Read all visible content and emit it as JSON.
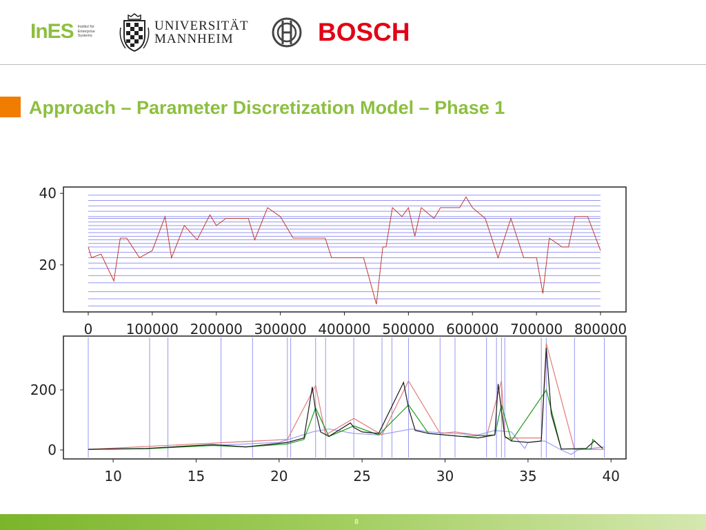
{
  "header": {
    "ines": {
      "word": "InES",
      "subtitle": "Institut für\nEnterprise\nSystems"
    },
    "university": {
      "line1": "UNIVERSITÄT",
      "line2": "MANNHEIM"
    },
    "bosch": {
      "word": "BOSCH"
    }
  },
  "slide": {
    "title": "Approach – Parameter Discretization Model – Phase 1",
    "page_number": "8"
  },
  "colors": {
    "accent_green": "#8cbf3f",
    "accent_orange": "#f07c00",
    "bosch_red": "#e20015",
    "series_red": "#c0392b",
    "bin_blue": "#7b7bf0"
  },
  "chart_data": [
    {
      "type": "line",
      "title": "",
      "xlabel": "",
      "ylabel": "",
      "xlim": [
        0,
        800000
      ],
      "ylim": [
        8,
        41
      ],
      "xticks": [
        "0",
        "100000",
        "200000",
        "300000",
        "400000",
        "500000",
        "600000",
        "700000",
        "800000"
      ],
      "yticks": [
        "20",
        "40"
      ],
      "grid": false,
      "horizontal_bins": [
        8.5,
        10.5,
        12.5,
        15,
        17,
        19,
        20.5,
        22,
        23.5,
        25,
        26,
        27,
        28,
        29,
        30,
        31,
        32,
        33,
        33.5,
        35,
        36.5,
        38,
        39.5
      ],
      "series": [
        {
          "x": [
            0,
            5000,
            20000,
            40000,
            50000,
            60000,
            80000,
            100000,
            120000,
            130000,
            150000,
            170000,
            190000,
            200000,
            215000,
            230000,
            250000,
            260000,
            280000,
            300000,
            320000,
            350000,
            370000,
            380000,
            400000,
            430000,
            450000,
            460000,
            465000,
            475000,
            490000,
            500000,
            510000,
            520000,
            540000,
            550000,
            560000,
            580000,
            590000,
            600000,
            620000,
            640000,
            660000,
            680000,
            700000,
            710000,
            720000,
            740000,
            750000,
            760000,
            780000,
            800000
          ],
          "y": [
            25,
            22,
            23,
            15.5,
            27.5,
            27.5,
            22,
            24,
            33.5,
            22,
            31,
            27,
            34,
            31,
            33,
            33,
            33,
            27,
            36,
            33.5,
            27.5,
            27.5,
            27.5,
            22,
            22,
            22,
            9,
            25,
            25,
            36,
            33.5,
            36,
            28,
            36,
            33,
            36,
            36,
            36,
            39,
            36,
            33,
            22,
            33,
            22,
            22,
            12,
            27.5,
            25,
            25,
            33.5,
            33.5,
            24
          ]
        }
      ]
    },
    {
      "type": "line",
      "title": "",
      "xlabel": "",
      "ylabel": "",
      "xlim": [
        8.5,
        39.7
      ],
      "ylim": [
        -10,
        360
      ],
      "xticks": [
        "10",
        "15",
        "20",
        "25",
        "30",
        "35",
        "40"
      ],
      "yticks": [
        "0",
        "200"
      ],
      "grid": false,
      "vertical_bins": [
        8.5,
        12.2,
        13.3,
        16.5,
        18.4,
        20.5,
        20.7,
        22.2,
        22.8,
        24.5,
        26.2,
        26.8,
        27.8,
        29.7,
        30.6,
        32.5,
        33.1,
        33.4,
        33.6,
        35.8,
        36.1,
        37.8,
        39.6
      ],
      "series": [
        {
          "name": "",
          "color": "#1a1a1a",
          "x": [
            8.5,
            12,
            16,
            18,
            20.5,
            21.5,
            22.0,
            22.2,
            22.5,
            23,
            24.3,
            24.5,
            25,
            26,
            27.5,
            27.8,
            28.2,
            29,
            30,
            31,
            32,
            33,
            33.2,
            33.4,
            33.6,
            34,
            35,
            35.8,
            36.1,
            36.4,
            37,
            38.5,
            39,
            39.5
          ],
          "y": [
            2,
            5,
            18,
            10,
            25,
            40,
            210,
            130,
            60,
            45,
            90,
            75,
            60,
            55,
            225,
            140,
            65,
            55,
            50,
            45,
            40,
            50,
            220,
            130,
            45,
            30,
            25,
            30,
            340,
            120,
            3,
            5,
            30,
            5
          ]
        },
        {
          "name": "",
          "color": "#1a9a1a",
          "x": [
            8.5,
            12,
            16,
            18,
            20.5,
            21.5,
            22.2,
            23,
            24.5,
            26,
            27.8,
            29,
            31,
            33,
            33.4,
            34,
            36.1,
            37,
            38.8,
            38.9,
            39.5
          ],
          "y": [
            2,
            4,
            15,
            10,
            20,
            35,
            140,
            45,
            80,
            50,
            150,
            55,
            45,
            50,
            150,
            30,
            200,
            3,
            3,
            35,
            5
          ]
        },
        {
          "name": "",
          "color": "#e07a7a",
          "x": [
            8.5,
            20.5,
            22.2,
            22.8,
            24.5,
            26.2,
            27.8,
            29.7,
            30.6,
            32.5,
            33.4,
            33.6,
            35.8,
            36.1,
            37.8,
            39.6
          ],
          "y": [
            2,
            35,
            215,
            50,
            105,
            50,
            230,
            55,
            60,
            45,
            230,
            40,
            40,
            355,
            2,
            2
          ]
        },
        {
          "name": "",
          "color": "#9a9af5",
          "x": [
            8.5,
            12,
            16,
            20,
            22,
            23,
            24.5,
            26,
            28,
            29,
            30.5,
            32,
            33,
            34,
            34.8,
            35,
            36,
            37,
            37.6,
            38,
            39.6
          ],
          "y": [
            2,
            5,
            15,
            25,
            60,
            70,
            55,
            50,
            70,
            60,
            55,
            50,
            65,
            60,
            5,
            25,
            30,
            0,
            -15,
            0,
            10
          ]
        }
      ]
    }
  ]
}
